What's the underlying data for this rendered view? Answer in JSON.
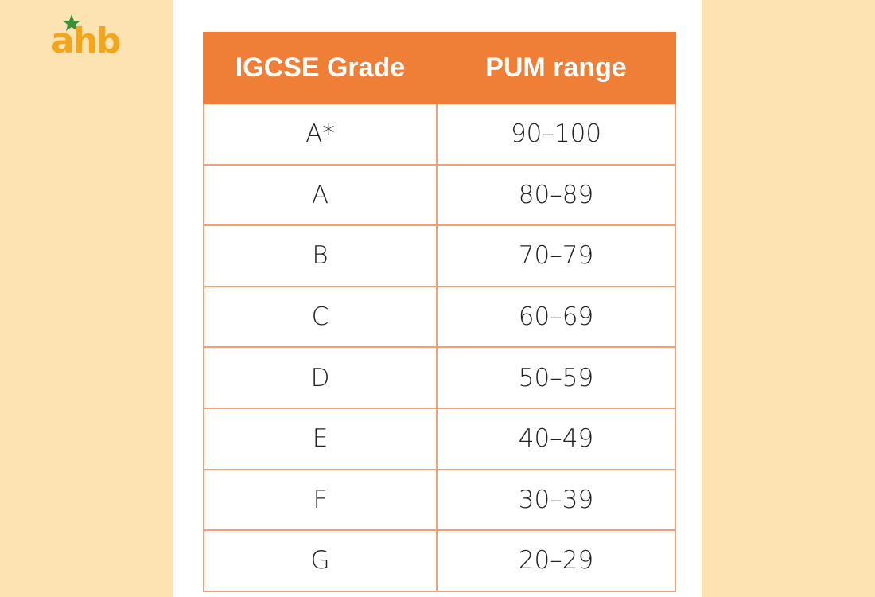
{
  "logo": {
    "text": "ahb"
  },
  "table": {
    "header": [
      "IGCSE Grade",
      "PUM range"
    ],
    "rows": [
      [
        "A*",
        "90–100"
      ],
      [
        "A",
        "80–89"
      ],
      [
        "B",
        "70–79"
      ],
      [
        "C",
        "60–69"
      ],
      [
        "D",
        "50–59"
      ],
      [
        "E",
        "40–49"
      ],
      [
        "F",
        "30–39"
      ],
      [
        "G",
        "20–29"
      ]
    ]
  }
}
